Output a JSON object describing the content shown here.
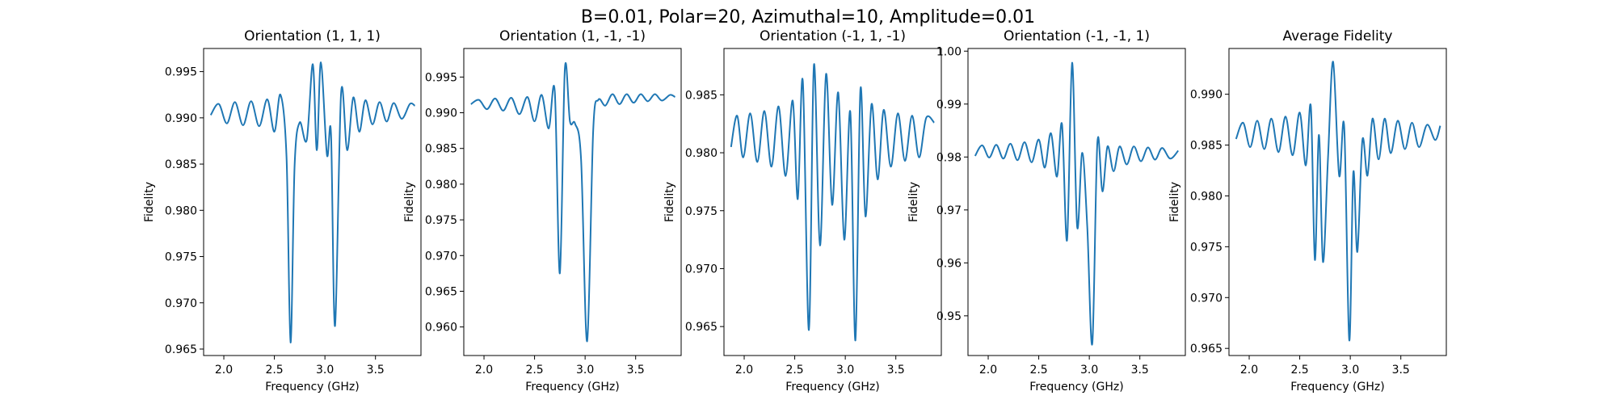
{
  "figure": {
    "suptitle": "B=0.01, Polar=20, Azimuthal=10, Amplitude=0.01"
  },
  "colors": {
    "line": "#1f77b4"
  },
  "chart_data": [
    {
      "type": "line",
      "title": "Orientation (1, 1, 1)",
      "xlabel": "Frequency (GHz)",
      "ylabel": "Fidelity",
      "xlim": [
        1.8,
        3.95
      ],
      "ylim": [
        0.9643,
        0.9975
      ],
      "xticks": [
        2.0,
        2.5,
        3.0,
        3.5
      ],
      "xtick_labels": [
        "2.0",
        "2.5",
        "3.0",
        "3.5"
      ],
      "yticks": [
        0.965,
        0.97,
        0.975,
        0.98,
        0.985,
        0.99,
        0.995
      ],
      "ytick_labels": [
        "0.965",
        "0.970",
        "0.975",
        "0.980",
        "0.985",
        "0.990",
        "0.995"
      ],
      "series": [
        {
          "x": [
            1.87,
            1.95,
            2.03,
            2.11,
            2.19,
            2.27,
            2.35,
            2.43,
            2.5,
            2.56,
            2.62,
            2.66,
            2.7,
            2.75,
            2.82,
            2.88,
            2.92,
            2.96,
            3.02,
            3.06,
            3.1,
            3.16,
            3.22,
            3.28,
            3.34,
            3.4,
            3.47,
            3.54,
            3.61,
            3.68,
            3.76,
            3.84,
            3.89
          ],
          "y": [
            0.9903,
            0.9915,
            0.9894,
            0.9917,
            0.9892,
            0.9918,
            0.9891,
            0.992,
            0.9885,
            0.9925,
            0.9858,
            0.9657,
            0.9848,
            0.9895,
            0.9876,
            0.9958,
            0.9865,
            0.996,
            0.986,
            0.9883,
            0.9675,
            0.9927,
            0.9865,
            0.9922,
            0.9885,
            0.9919,
            0.9893,
            0.9917,
            0.9896,
            0.9916,
            0.9899,
            0.9915,
            0.9913
          ]
        }
      ]
    },
    {
      "type": "line",
      "title": "Orientation (1, -1, -1)",
      "xlabel": "Frequency (GHz)",
      "ylabel": "Fidelity",
      "xlim": [
        1.8,
        3.95
      ],
      "ylim": [
        0.956,
        0.999
      ],
      "xticks": [
        2.0,
        2.5,
        3.0,
        3.5
      ],
      "xtick_labels": [
        "2.0",
        "2.5",
        "3.0",
        "3.5"
      ],
      "yticks": [
        0.96,
        0.965,
        0.97,
        0.975,
        0.98,
        0.985,
        0.99,
        0.995
      ],
      "ytick_labels": [
        "0.960",
        "0.965",
        "0.970",
        "0.975",
        "0.980",
        "0.985",
        "0.990",
        "0.995"
      ],
      "series": [
        {
          "x": [
            1.87,
            1.95,
            2.03,
            2.11,
            2.19,
            2.27,
            2.35,
            2.43,
            2.5,
            2.57,
            2.64,
            2.7,
            2.75,
            2.8,
            2.85,
            2.9,
            2.96,
            3.02,
            3.08,
            3.13,
            3.2,
            3.27,
            3.34,
            3.41,
            3.48,
            3.55,
            3.62,
            3.69,
            3.76,
            3.84,
            3.89
          ],
          "y": [
            0.9912,
            0.9918,
            0.9905,
            0.992,
            0.9903,
            0.9921,
            0.9898,
            0.9922,
            0.9888,
            0.9925,
            0.9878,
            0.993,
            0.9675,
            0.9962,
            0.9888,
            0.9885,
            0.9835,
            0.958,
            0.9875,
            0.9918,
            0.991,
            0.9926,
            0.9912,
            0.9926,
            0.9914,
            0.9926,
            0.9916,
            0.9926,
            0.9917,
            0.9925,
            0.9922
          ]
        }
      ]
    },
    {
      "type": "line",
      "title": "Orientation (-1, 1, -1)",
      "xlabel": "Frequency (GHz)",
      "ylabel": "Fidelity",
      "xlim": [
        1.8,
        3.95
      ],
      "ylim": [
        0.9625,
        0.989
      ],
      "xticks": [
        2.0,
        2.5,
        3.0,
        3.5
      ],
      "xtick_labels": [
        "2.0",
        "2.5",
        "3.0",
        "3.5"
      ],
      "yticks": [
        0.965,
        0.97,
        0.975,
        0.98,
        0.985
      ],
      "ytick_labels": [
        "0.965",
        "0.970",
        "0.975",
        "0.980",
        "0.985"
      ],
      "series": [
        {
          "x": [
            1.87,
            1.93,
            1.99,
            2.06,
            2.13,
            2.2,
            2.27,
            2.34,
            2.41,
            2.48,
            2.53,
            2.58,
            2.64,
            2.69,
            2.75,
            2.81,
            2.87,
            2.93,
            2.99,
            3.05,
            3.1,
            3.15,
            3.2,
            3.26,
            3.32,
            3.38,
            3.45,
            3.52,
            3.59,
            3.66,
            3.73,
            3.8,
            3.88
          ],
          "y": [
            0.9805,
            0.9832,
            0.9796,
            0.9834,
            0.9792,
            0.9836,
            0.9788,
            0.984,
            0.978,
            0.9845,
            0.976,
            0.9862,
            0.9647,
            0.9876,
            0.972,
            0.9868,
            0.9755,
            0.9852,
            0.9725,
            0.9835,
            0.9638,
            0.9855,
            0.9745,
            0.9842,
            0.9777,
            0.9837,
            0.9788,
            0.9834,
            0.9793,
            0.9832,
            0.9796,
            0.983,
            0.9826
          ]
        }
      ]
    },
    {
      "type": "line",
      "title": "Orientation (-1, -1, 1)",
      "xlabel": "Frequency (GHz)",
      "ylabel": "Fidelity",
      "xlim": [
        1.8,
        3.95
      ],
      "ylim": [
        0.9425,
        1.0005
      ],
      "xticks": [
        2.0,
        2.5,
        3.0,
        3.5
      ],
      "xtick_labels": [
        "2.0",
        "2.5",
        "3.0",
        "3.5"
      ],
      "yticks": [
        0.95,
        0.96,
        0.97,
        0.98,
        0.99,
        1.0
      ],
      "ytick_labels": [
        "0.95",
        "0.96",
        "0.97",
        "0.98",
        "0.99",
        "1.00"
      ],
      "series": [
        {
          "x": [
            1.87,
            1.94,
            2.01,
            2.08,
            2.15,
            2.22,
            2.29,
            2.36,
            2.43,
            2.5,
            2.56,
            2.62,
            2.68,
            2.73,
            2.78,
            2.83,
            2.88,
            2.93,
            2.98,
            3.03,
            3.08,
            3.13,
            3.18,
            3.24,
            3.3,
            3.37,
            3.44,
            3.51,
            3.58,
            3.65,
            3.72,
            3.8,
            3.88
          ],
          "y": [
            0.9802,
            0.9822,
            0.9799,
            0.9823,
            0.9797,
            0.9825,
            0.9794,
            0.9828,
            0.979,
            0.9833,
            0.978,
            0.9845,
            0.9763,
            0.9862,
            0.9643,
            0.9978,
            0.9668,
            0.9808,
            0.9668,
            0.9448,
            0.9828,
            0.9735,
            0.982,
            0.9773,
            0.982,
            0.9786,
            0.982,
            0.9792,
            0.9818,
            0.9795,
            0.9817,
            0.9797,
            0.9812
          ]
        }
      ]
    },
    {
      "type": "line",
      "title": "Average Fidelity",
      "xlabel": "Frequency (GHz)",
      "ylabel": "Fidelity",
      "xlim": [
        1.8,
        3.95
      ],
      "ylim": [
        0.9643,
        0.9945
      ],
      "xticks": [
        2.0,
        2.5,
        3.0,
        3.5
      ],
      "xtick_labels": [
        "2.0",
        "2.5",
        "3.0",
        "3.5"
      ],
      "yticks": [
        0.965,
        0.97,
        0.975,
        0.98,
        0.985,
        0.99
      ],
      "ytick_labels": [
        "0.965",
        "0.970",
        "0.975",
        "0.980",
        "0.985",
        "0.990"
      ],
      "series": [
        {
          "x": [
            1.87,
            1.94,
            2.01,
            2.08,
            2.15,
            2.22,
            2.29,
            2.36,
            2.43,
            2.5,
            2.56,
            2.61,
            2.65,
            2.69,
            2.73,
            2.78,
            2.83,
            2.89,
            2.94,
            2.99,
            3.03,
            3.07,
            3.12,
            3.17,
            3.22,
            3.28,
            3.34,
            3.4,
            3.47,
            3.54,
            3.61,
            3.68,
            3.76,
            3.84,
            3.89
          ],
          "y": [
            0.9856,
            0.9872,
            0.9848,
            0.9874,
            0.9846,
            0.9876,
            0.9843,
            0.9878,
            0.984,
            0.9882,
            0.983,
            0.9888,
            0.9737,
            0.986,
            0.9735,
            0.9838,
            0.9932,
            0.982,
            0.9868,
            0.9658,
            0.9823,
            0.9745,
            0.9855,
            0.982,
            0.9876,
            0.9836,
            0.9876,
            0.9842,
            0.9874,
            0.9846,
            0.9872,
            0.9848,
            0.987,
            0.9855,
            0.9869
          ]
        }
      ]
    }
  ]
}
